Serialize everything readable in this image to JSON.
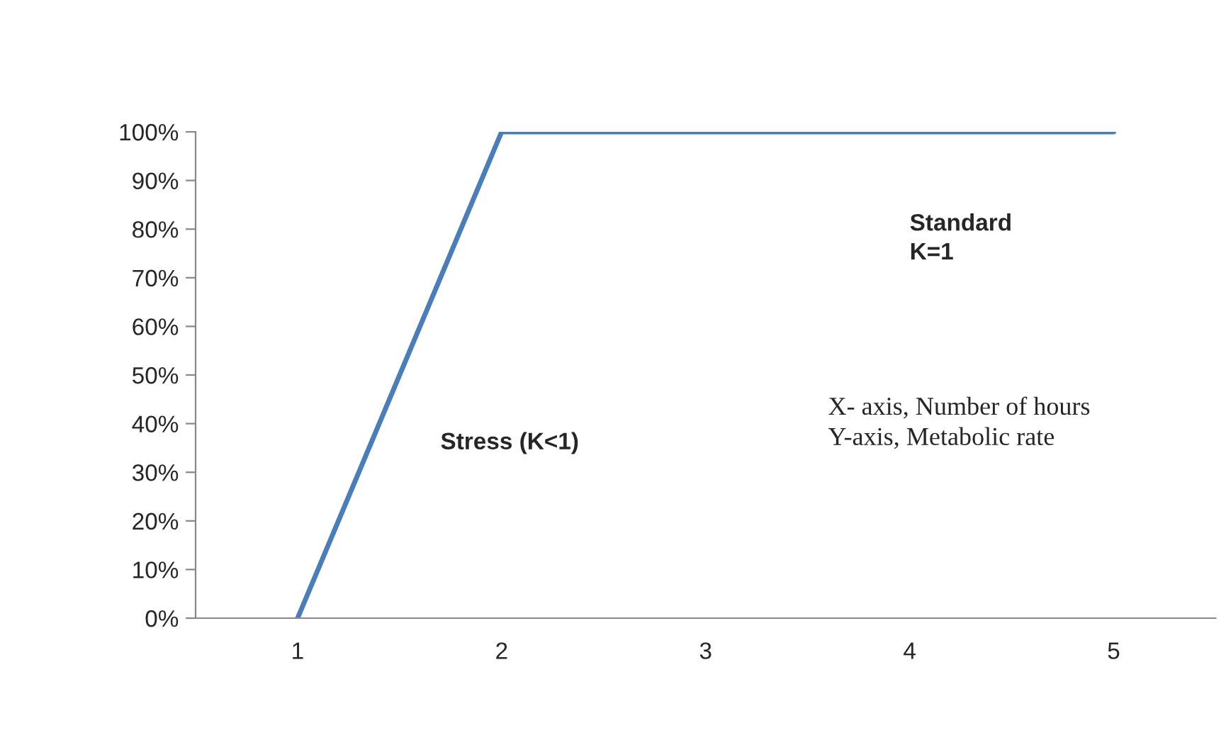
{
  "chart_data": {
    "type": "line",
    "categories": [
      "1",
      "2",
      "3",
      "4",
      "5"
    ],
    "series": [
      {
        "color": "#4a7ebb",
        "values": [
          0,
          100,
          100,
          100,
          100
        ]
      }
    ],
    "ylim": [
      0,
      100
    ],
    "yticks": [
      {
        "value": 0,
        "label": "0%"
      },
      {
        "value": 10,
        "label": "10%"
      },
      {
        "value": 20,
        "label": "20%"
      },
      {
        "value": 30,
        "label": "30%"
      },
      {
        "value": 40,
        "label": "40%"
      },
      {
        "value": 50,
        "label": "50%"
      },
      {
        "value": 60,
        "label": "60%"
      },
      {
        "value": 70,
        "label": "70%"
      },
      {
        "value": 80,
        "label": "80%"
      },
      {
        "value": 90,
        "label": "90%"
      },
      {
        "value": 100,
        "label": "100%"
      }
    ],
    "annotations": [
      "Standard\nK=1",
      "Stress (K<1)",
      "X- axis, Number of hours\nY-axis, Metabolic rate"
    ],
    "grid": false,
    "legend": false,
    "marker": "none",
    "line_style": "solid"
  }
}
